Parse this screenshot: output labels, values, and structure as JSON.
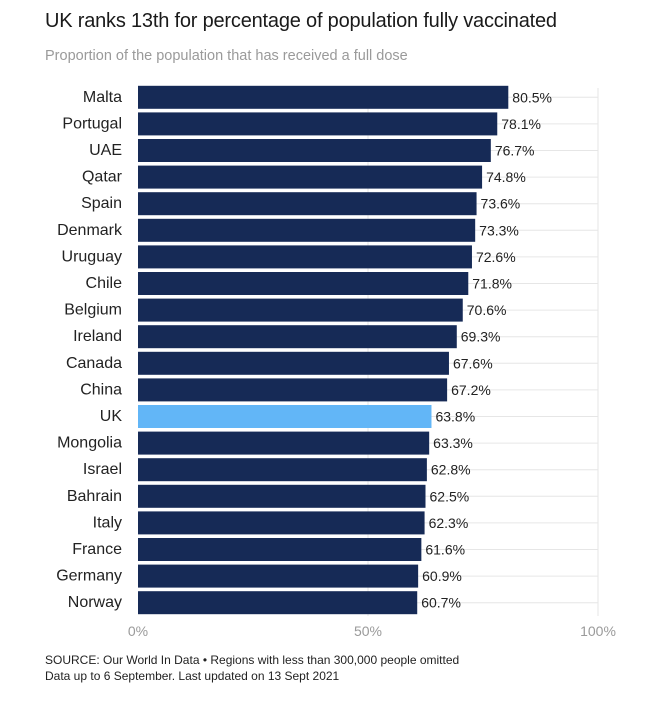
{
  "title": "UK ranks 13th for percentage of population fully vaccinated",
  "subtitle": "Proportion of the population that has received a full dose",
  "colors": {
    "bar": "#162a56",
    "highlight": "#62b6f7",
    "grid": "#e6e6e6",
    "tick": "#9a9a9a",
    "label": "#222222"
  },
  "chart_data": {
    "type": "bar",
    "orientation": "horizontal",
    "categories": [
      "Malta",
      "Portugal",
      "UAE",
      "Qatar",
      "Spain",
      "Denmark",
      "Uruguay",
      "Chile",
      "Belgium",
      "Ireland",
      "Canada",
      "China",
      "UK",
      "Mongolia",
      "Israel",
      "Bahrain",
      "Italy",
      "France",
      "Germany",
      "Norway"
    ],
    "values": [
      80.5,
      78.1,
      76.7,
      74.8,
      73.6,
      73.3,
      72.6,
      71.8,
      70.6,
      69.3,
      67.6,
      67.2,
      63.8,
      63.3,
      62.8,
      62.5,
      62.3,
      61.6,
      60.9,
      60.7
    ],
    "value_labels": [
      "80.5%",
      "78.1%",
      "76.7%",
      "74.8%",
      "73.6%",
      "73.3%",
      "72.6%",
      "71.8%",
      "70.6%",
      "69.3%",
      "67.6%",
      "67.2%",
      "63.8%",
      "63.3%",
      "62.8%",
      "62.5%",
      "62.3%",
      "61.6%",
      "60.9%",
      "60.7%"
    ],
    "highlight": "UK",
    "xlim": [
      0,
      100
    ],
    "x_ticks": [
      0,
      50,
      100
    ],
    "x_tick_labels": [
      "0%",
      "50%",
      "100%"
    ],
    "grid": true
  },
  "footer": {
    "source": "SOURCE: Our World In Data • Regions with less than 300,000 people omitted",
    "note": "Data up to 6 September. Last updated on 13 Sept 2021"
  }
}
